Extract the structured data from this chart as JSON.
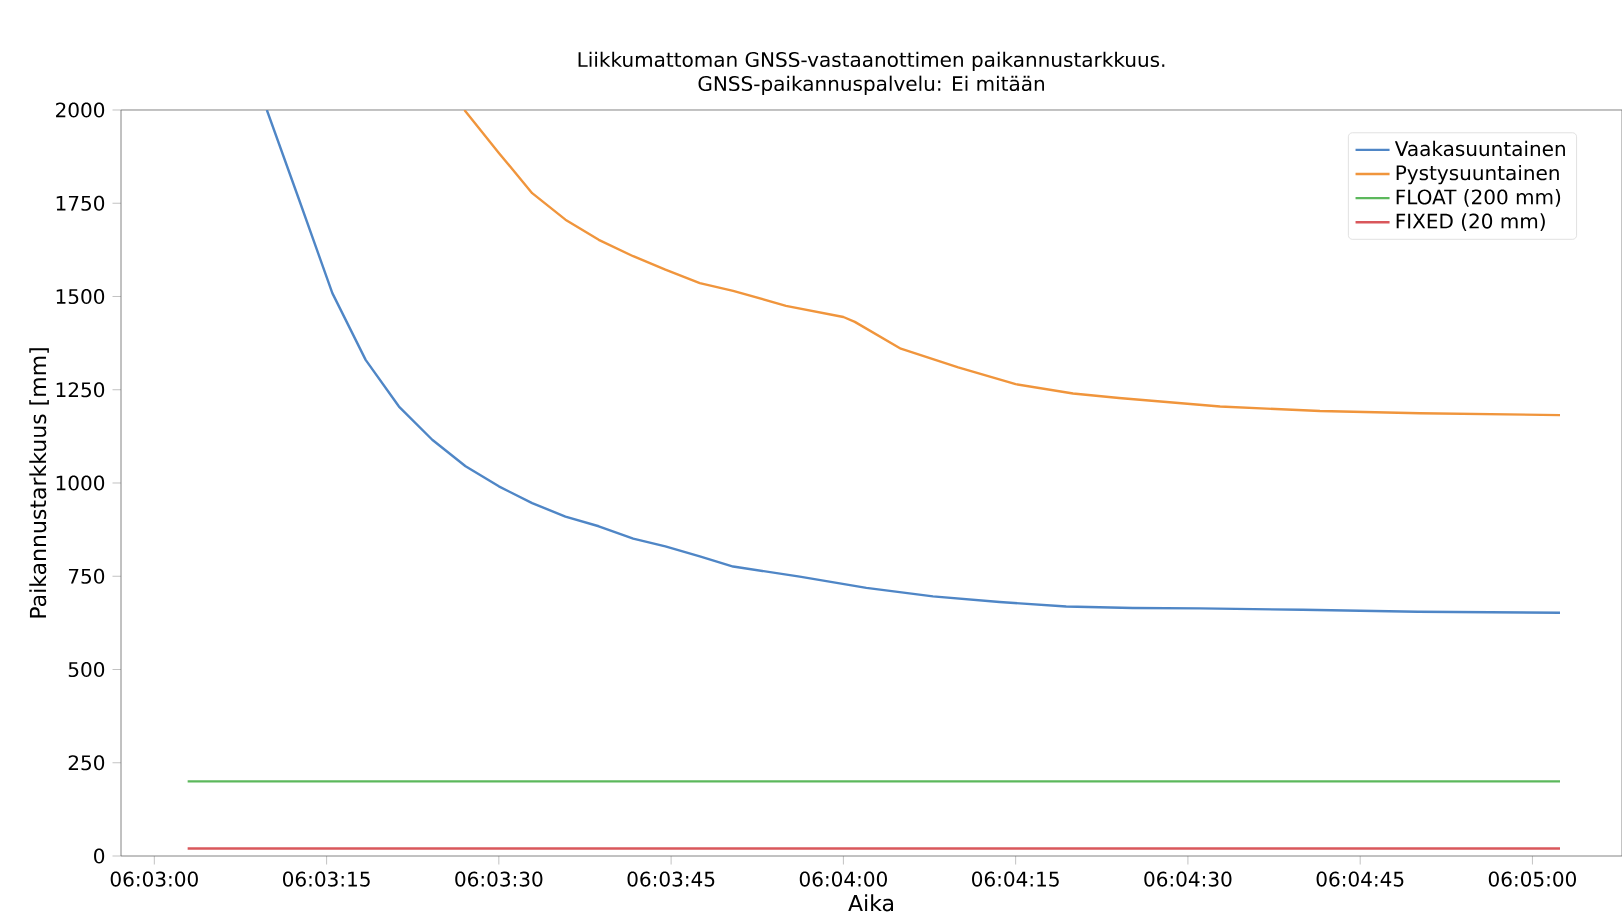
{
  "chart_data": {
    "type": "line",
    "title": "Liikkumattoman GNSS-vastaanottimen paikannustarkkuus.",
    "subtitle": "GNSS-paikannuspalvelu: Ei mitään",
    "xlabel": "Aika",
    "ylabel": "Paikannustarkkuus [mm]",
    "xlim": [
      6.049194,
      6.0855
    ],
    "ylim": [
      0,
      2000
    ],
    "xticks": [
      {
        "value": 6.05,
        "label": "06:03:00"
      },
      {
        "value": 6.054167,
        "label": "06:03:15"
      },
      {
        "value": 6.058333,
        "label": "06:03:30"
      },
      {
        "value": 6.0625,
        "label": "06:03:45"
      },
      {
        "value": 6.066667,
        "label": "06:04:00"
      },
      {
        "value": 6.070833,
        "label": "06:04:15"
      },
      {
        "value": 6.075,
        "label": "06:04:30"
      },
      {
        "value": 6.079167,
        "label": "06:04:45"
      },
      {
        "value": 6.083333,
        "label": "06:05:00"
      }
    ],
    "yticks": [
      0,
      250,
      500,
      750,
      1000,
      1250,
      1500,
      1750,
      2000
    ],
    "legend": "top right",
    "line_style": "solid",
    "series": [
      {
        "name": "Vaakasuuntainen",
        "color": "#4f86c6",
        "x": [
          6.052722,
          6.0535,
          6.054306,
          6.055111,
          6.055917,
          6.056722,
          6.057528,
          6.058333,
          6.059139,
          6.059944,
          6.06075,
          6.061583,
          6.062361,
          6.063194,
          6.064,
          6.065611,
          6.067222,
          6.068833,
          6.070444,
          6.072056,
          6.073667,
          6.075278,
          6.077778,
          6.080556,
          6.084
        ],
        "values": [
          2000,
          1760,
          1509,
          1330,
          1205,
          1116,
          1045,
          991,
          946,
          910,
          884,
          851,
          830,
          803,
          776,
          749,
          719,
          696,
          681,
          669,
          665,
          664,
          660,
          655,
          652
        ]
      },
      {
        "name": "Pystysuuntainen",
        "color": "#f0953c",
        "x": [
          6.0575,
          6.058333,
          6.059139,
          6.059944,
          6.06075,
          6.061583,
          6.062361,
          6.063194,
          6.064,
          6.065278,
          6.066667,
          6.066944,
          6.068056,
          6.069444,
          6.070833,
          6.072222,
          6.073333,
          6.075778,
          6.078194,
          6.080611,
          6.084
        ],
        "values": [
          2000,
          1885,
          1777,
          1706,
          1652,
          1608,
          1572,
          1536,
          1515,
          1475,
          1445,
          1432,
          1360,
          1310,
          1265,
          1240,
          1228,
          1205,
          1193,
          1187,
          1182
        ]
      },
      {
        "name": "FLOAT (200 mm)",
        "color": "#5cb85c",
        "x": [
          6.050806,
          6.084
        ],
        "values": [
          200,
          200
        ]
      },
      {
        "name": "FIXED (20 mm)",
        "color": "#d9575b",
        "x": [
          6.050806,
          6.084
        ],
        "values": [
          20,
          20
        ]
      }
    ]
  }
}
